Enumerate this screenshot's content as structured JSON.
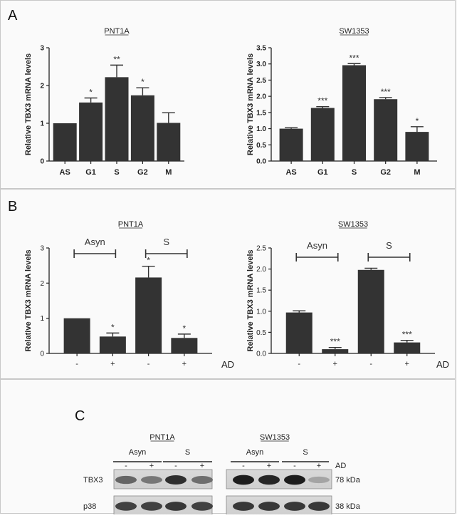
{
  "panels": [
    {
      "label": "A"
    },
    {
      "label": "B"
    },
    {
      "label": "C"
    }
  ],
  "chart_data": [
    {
      "id": "A-PNT1A",
      "type": "bar",
      "title": "PNT1A",
      "ylabel": "Relative TBX3 mRNA levels",
      "categories": [
        "AS",
        "G1",
        "S",
        "G2",
        "M"
      ],
      "values": [
        1.0,
        1.55,
        2.22,
        1.74,
        1.01
      ],
      "errors": [
        0,
        0.12,
        0.32,
        0.2,
        0.27
      ],
      "significance": [
        "",
        "*",
        "**",
        "*",
        ""
      ],
      "ylim": [
        0,
        3
      ],
      "yticks": [
        "0",
        "1",
        "2",
        "3"
      ],
      "bold_axes": true
    },
    {
      "id": "A-SW1353",
      "type": "bar",
      "title": "SW1353",
      "ylabel": "Relative TBX3 mRNA levels",
      "categories": [
        "AS",
        "G1",
        "S",
        "G2",
        "M"
      ],
      "values": [
        1.0,
        1.64,
        2.96,
        1.91,
        0.9
      ],
      "errors": [
        0.03,
        0.04,
        0.05,
        0.05,
        0.16
      ],
      "significance": [
        "",
        "***",
        "***",
        "***",
        "*"
      ],
      "ylim": [
        0,
        3.5
      ],
      "yticks": [
        "0.0",
        "0.5",
        "1.0",
        "1.5",
        "2.0",
        "2.5",
        "3.0",
        "3.5"
      ],
      "bold_axes": true
    },
    {
      "id": "B-PNT1A",
      "type": "bar",
      "title": "PNT1A",
      "ylabel": "Relative TBX3 mRNA levels",
      "categories": [
        "-",
        "+",
        "-",
        "+"
      ],
      "values": [
        1.0,
        0.48,
        2.16,
        0.44
      ],
      "errors": [
        0,
        0.1,
        0.32,
        0.11
      ],
      "significance": [
        "",
        "*",
        "*",
        "*"
      ],
      "ylim": [
        0,
        3
      ],
      "yticks": [
        "0",
        "1",
        "2",
        "3"
      ],
      "groups": [
        "Asyn",
        "S"
      ],
      "treatment_label": "AD",
      "bold_axes": false
    },
    {
      "id": "B-SW1353",
      "type": "bar",
      "title": "SW1353",
      "ylabel": "Relative TBX3 mRNA levels",
      "categories": [
        "-",
        "+",
        "-",
        "+"
      ],
      "values": [
        0.97,
        0.1,
        1.98,
        0.26
      ],
      "errors": [
        0.04,
        0.04,
        0.04,
        0.05
      ],
      "significance": [
        "",
        "***",
        "",
        "***"
      ],
      "ylim": [
        0,
        2.5
      ],
      "yticks": [
        "0.0",
        "0.5",
        "1.0",
        "1.5",
        "2.0",
        "2.5"
      ],
      "groups": [
        "Asyn",
        "S"
      ],
      "treatment_label": "AD",
      "bold_axes": false
    }
  ],
  "blot": {
    "cell_lines": [
      "PNT1A",
      "SW1353"
    ],
    "groups": [
      "Asyn",
      "S"
    ],
    "lanes": [
      "-",
      "+",
      "-",
      "+"
    ],
    "treatment_label": "AD",
    "rows": [
      {
        "protein": "TBX3",
        "size": "78 kDa"
      },
      {
        "protein": "p38",
        "size": "38 kDa"
      }
    ]
  }
}
